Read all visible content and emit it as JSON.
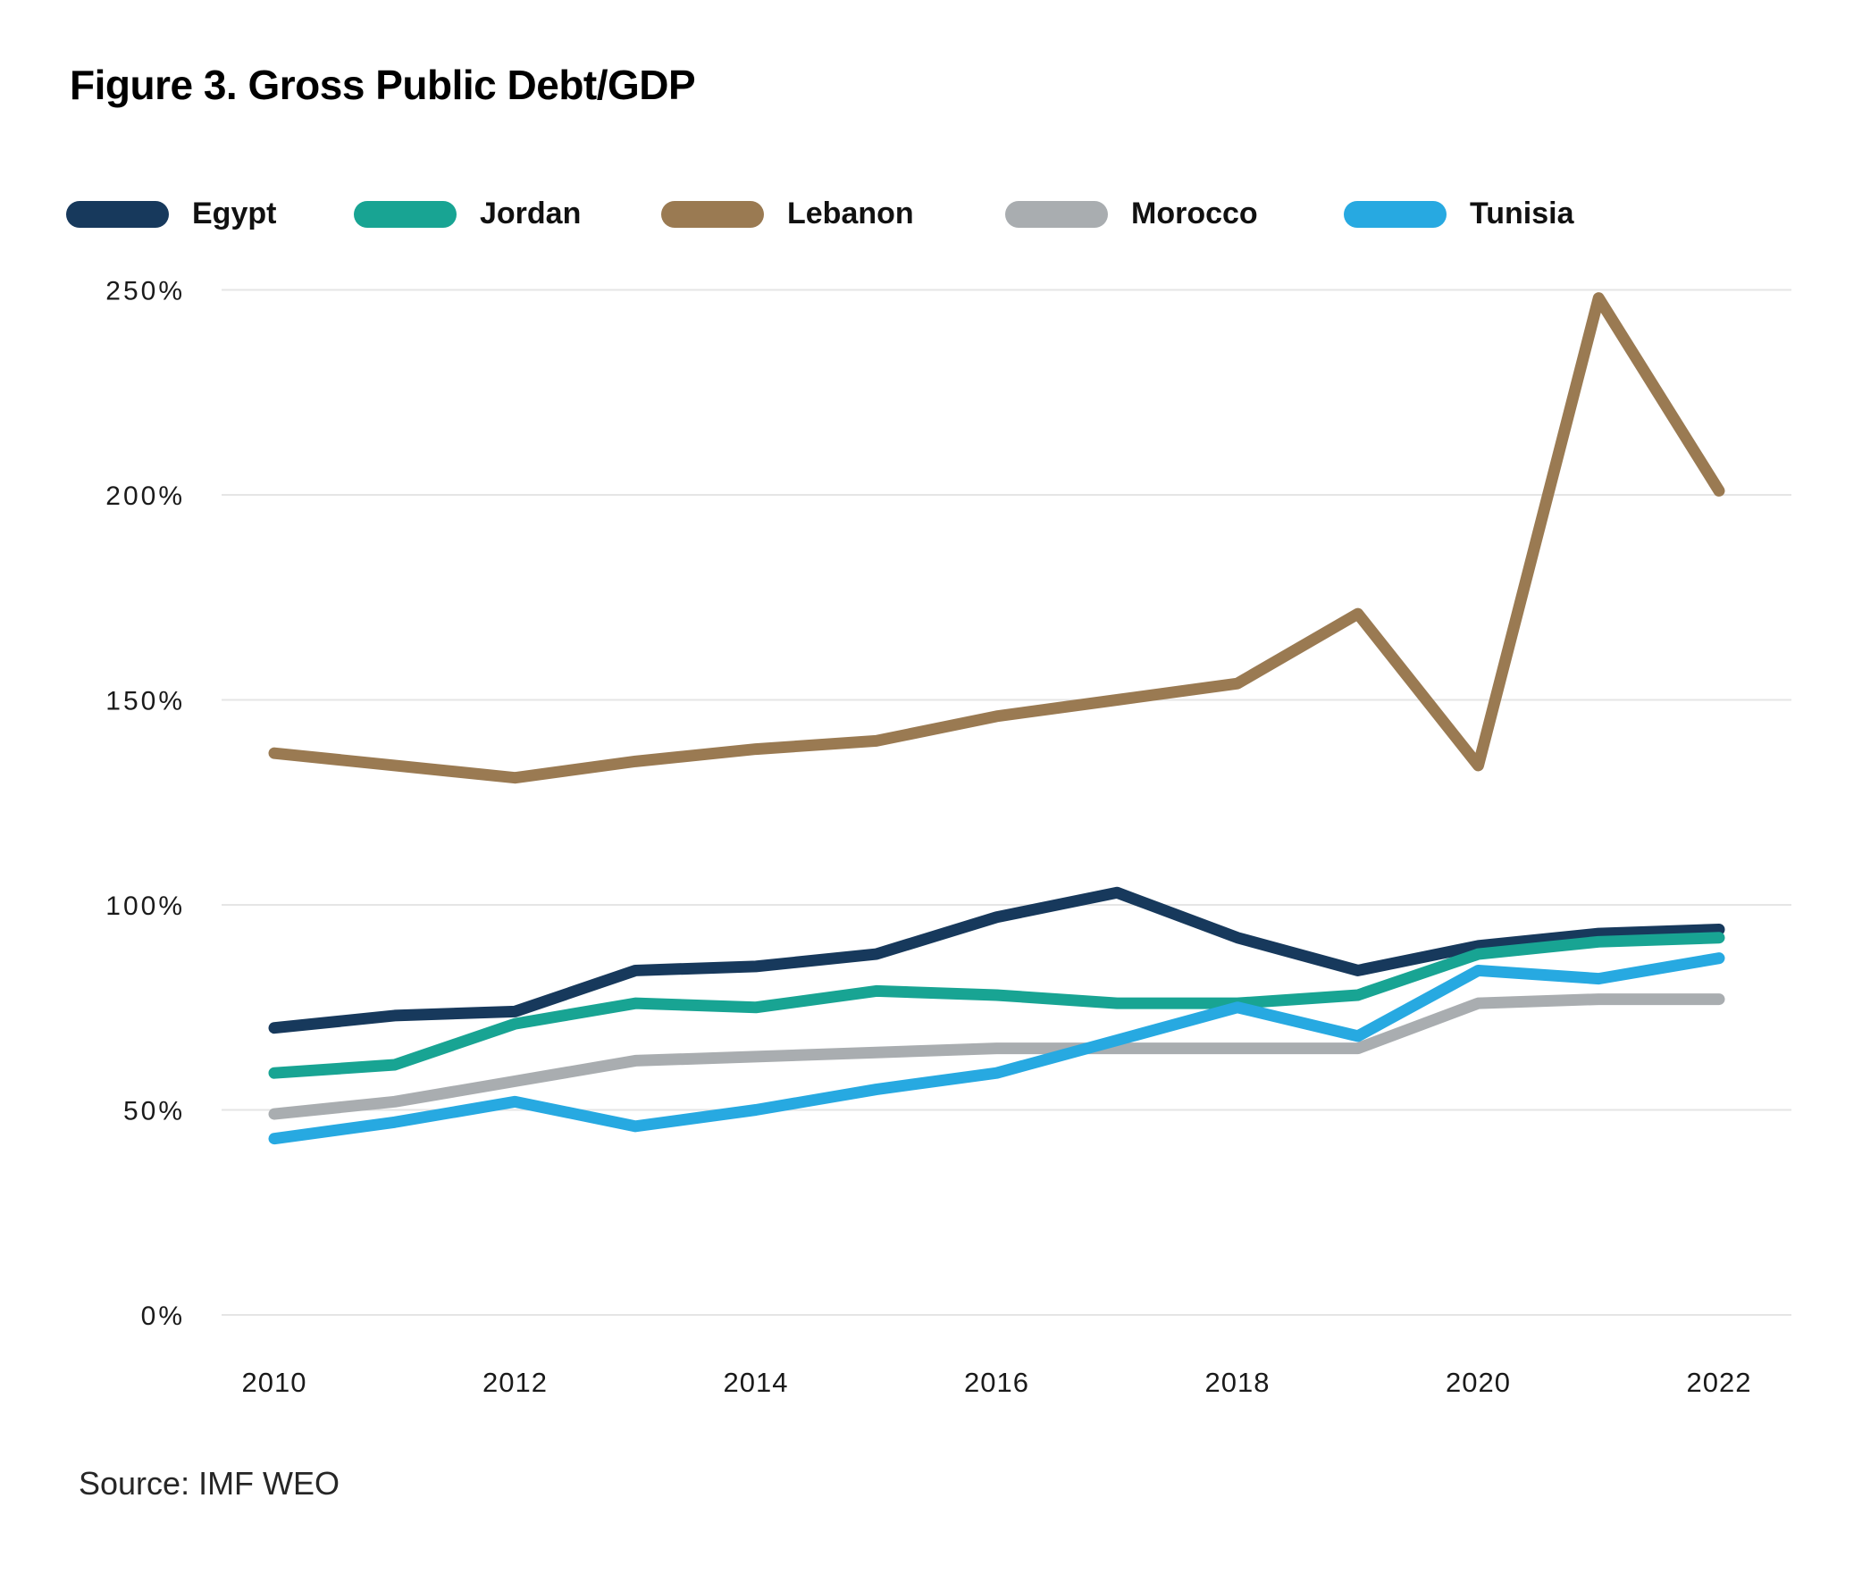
{
  "title": "Figure 3. Gross Public Debt/GDP",
  "source": "Source: IMF WEO",
  "colors": {
    "background": "#FFFFFF",
    "text": "#1A1A1A",
    "grid": "#E5E5E5",
    "title": "#000000"
  },
  "chart_data": {
    "type": "line",
    "title": "Figure 3. Gross Public Debt/GDP",
    "xlabel": "",
    "ylabel": "",
    "x": [
      2010,
      2011,
      2012,
      2013,
      2014,
      2015,
      2016,
      2017,
      2018,
      2019,
      2020,
      2021,
      2022
    ],
    "xticks": [
      2010,
      2012,
      2014,
      2016,
      2018,
      2020,
      2022
    ],
    "yticks": [
      {
        "value": 0,
        "label": "0%"
      },
      {
        "value": 50,
        "label": "50%"
      },
      {
        "value": 100,
        "label": "100%"
      },
      {
        "value": 150,
        "label": "150%"
      },
      {
        "value": 200,
        "label": "200%"
      },
      {
        "value": 250,
        "label": "250%"
      }
    ],
    "ylim": [
      0,
      250
    ],
    "unit": "percent of GDP",
    "grid": "horizontal",
    "legend_position": "top",
    "series": [
      {
        "name": "Egypt",
        "color": "#17395C",
        "values": [
          70,
          73,
          74,
          84,
          85,
          88,
          97,
          103,
          92,
          84,
          90,
          93,
          94
        ]
      },
      {
        "name": "Jordan",
        "color": "#18A493",
        "values": [
          59,
          61,
          71,
          76,
          75,
          79,
          78,
          76,
          76,
          78,
          88,
          91,
          92
        ]
      },
      {
        "name": "Lebanon",
        "color": "#9A7A52",
        "values": [
          137,
          134,
          131,
          135,
          138,
          140,
          146,
          150,
          154,
          171,
          134,
          248,
          201
        ]
      },
      {
        "name": "Morocco",
        "color": "#A9ADB0",
        "values": [
          49,
          52,
          57,
          62,
          63,
          64,
          65,
          65,
          65,
          65,
          76,
          77,
          77
        ]
      },
      {
        "name": "Tunisia",
        "color": "#27A9E1",
        "values": [
          43,
          47,
          52,
          46,
          50,
          55,
          59,
          67,
          75,
          68,
          84,
          82,
          87
        ]
      }
    ]
  }
}
